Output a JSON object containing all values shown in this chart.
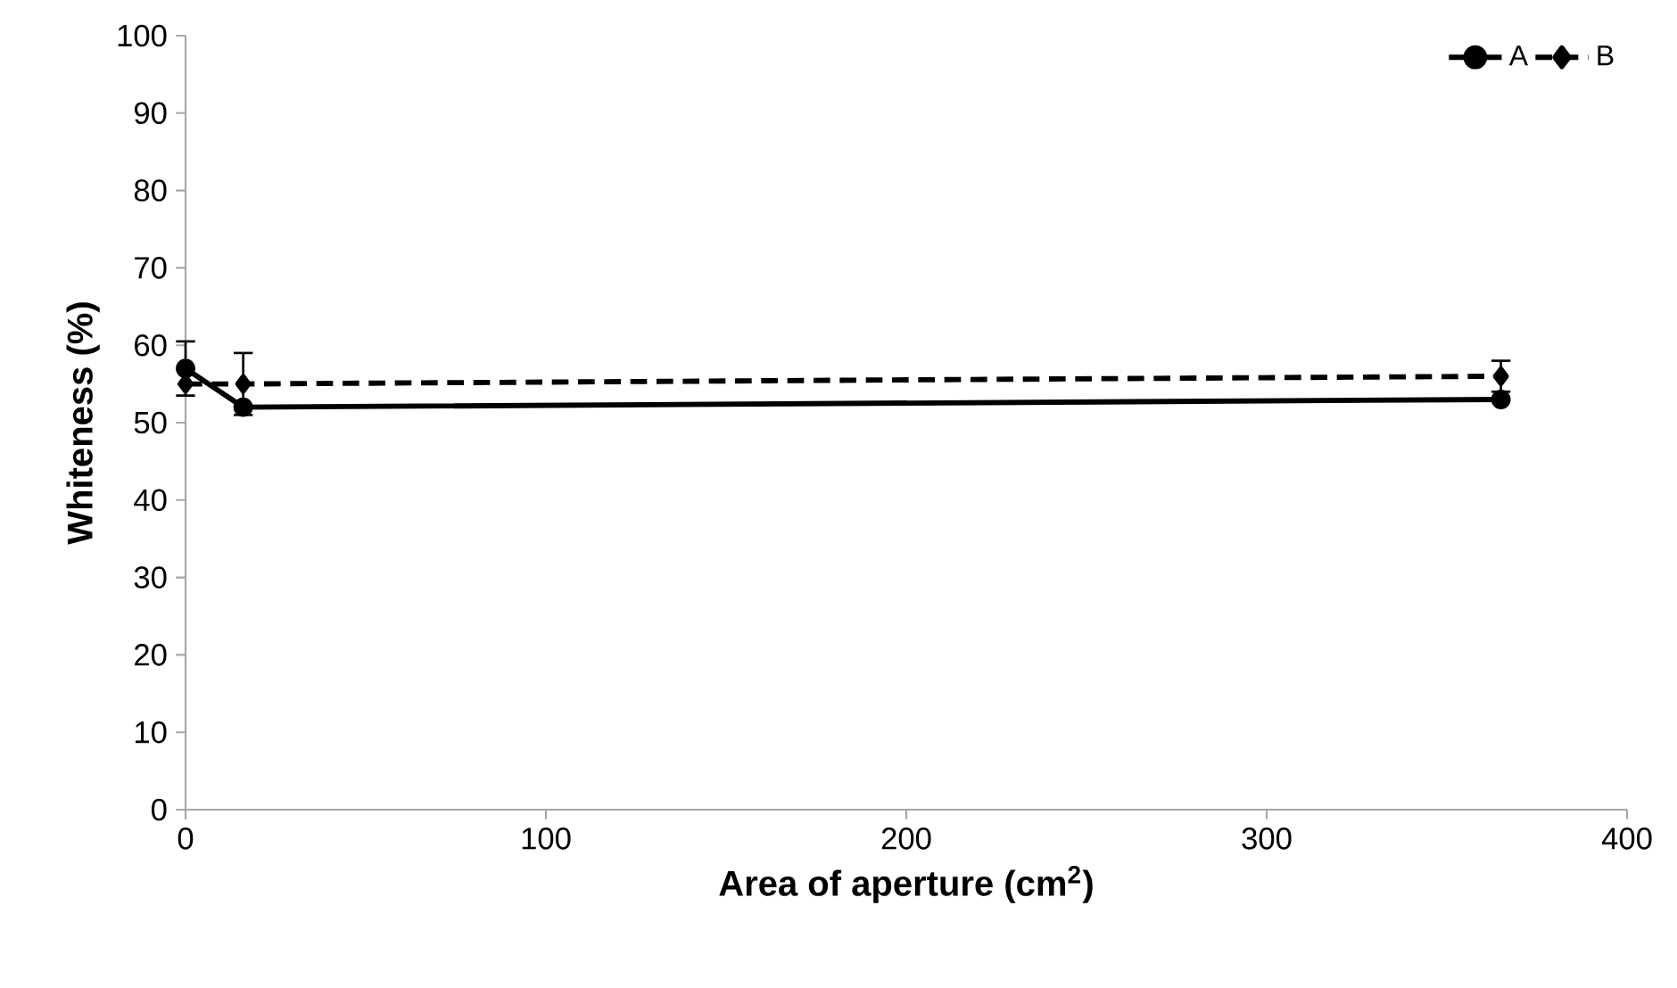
{
  "chart_data": {
    "type": "line",
    "xlabel": "Area of aperture (cm$^{2}$)",
    "ylabel": "Whiteness (%)",
    "x": [
      0,
      16,
      365
    ],
    "series": [
      {
        "name": "A",
        "color": "#000000",
        "values": [
          57,
          52,
          53
        ],
        "errors": [
          3.5,
          null,
          null
        ],
        "marker": "circle",
        "line_style": "solid"
      },
      {
        "name": "B",
        "color": "#000000",
        "values": [
          55,
          55,
          56
        ],
        "errors": [
          null,
          4,
          2
        ],
        "marker": "diamond",
        "line_style": "dashed"
      }
    ],
    "xlim": [
      0,
      400
    ],
    "ylim": [
      0,
      100
    ],
    "xticks": [
      0,
      100,
      200,
      300,
      400
    ],
    "yticks": [
      0,
      10,
      20,
      30,
      40,
      50,
      60,
      70,
      80,
      90,
      100
    ],
    "grid": false,
    "legend": "top right"
  }
}
